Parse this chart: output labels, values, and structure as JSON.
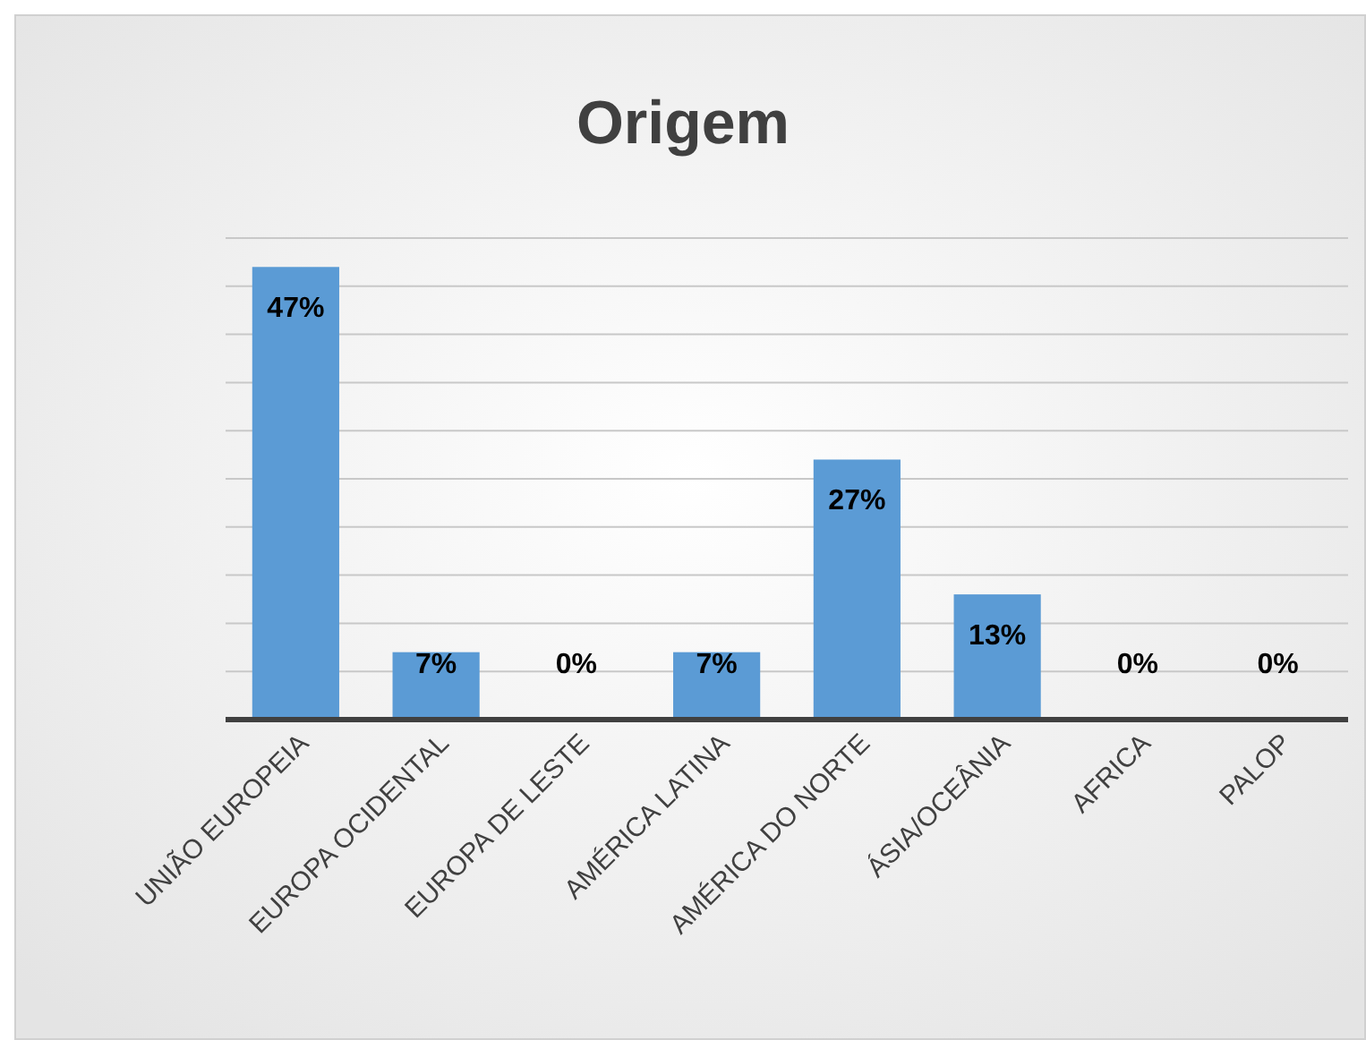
{
  "chart_data": {
    "type": "bar",
    "title": "Origem",
    "categories": [
      "UNIÃO EUROPEIA",
      "EUROPA OCIDENTAL",
      "EUROPA DE LESTE",
      "AMÉRICA LATINA",
      "AMÉRICA DO NORTE",
      "ÁSIA/OCEÂNIA",
      "AFRICA",
      "PALOP"
    ],
    "values": [
      47,
      7,
      0,
      7,
      27,
      13,
      0,
      0
    ],
    "value_labels": [
      "47%",
      "7%",
      "0%",
      "7%",
      "27%",
      "13%",
      "0%",
      "0%"
    ],
    "color": "#5b9bd5",
    "ylim": [
      0,
      50
    ],
    "yticks": [
      {
        "value": 0,
        "label": null
      },
      {
        "value": 5,
        "label": null
      },
      {
        "value": 10,
        "label": null
      },
      {
        "value": 15,
        "label": null
      },
      {
        "value": 20,
        "label": null
      },
      {
        "value": 25,
        "label": null
      },
      {
        "value": 30,
        "label": null
      },
      {
        "value": 35,
        "label": null
      },
      {
        "value": 40,
        "label": null
      },
      {
        "value": 45,
        "label": null
      },
      {
        "value": 50,
        "label": null
      }
    ],
    "tick_labels": "x",
    "grid": "y"
  }
}
